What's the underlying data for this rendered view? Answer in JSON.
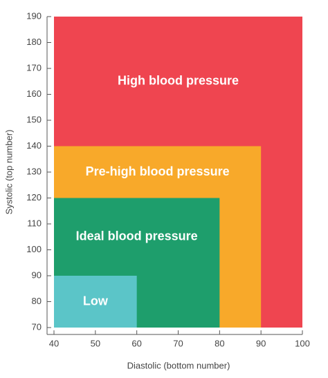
{
  "chart_data": {
    "type": "region",
    "x_label": "Diastolic (bottom number)",
    "y_label": "Systolic (top number)",
    "xlim": [
      40,
      100
    ],
    "ylim": [
      70,
      190
    ],
    "xticks": [
      40,
      50,
      60,
      70,
      80,
      90,
      100
    ],
    "yticks": [
      70,
      80,
      90,
      100,
      110,
      120,
      130,
      140,
      150,
      160,
      170,
      180,
      190
    ],
    "regions": [
      {
        "name": "High blood pressure",
        "color": "#ef4550",
        "x": [
          40,
          100
        ],
        "y": [
          70,
          190
        ]
      },
      {
        "name": "Pre-high blood pressure",
        "color": "#f8a92a",
        "x": [
          40,
          90
        ],
        "y": [
          70,
          140
        ]
      },
      {
        "name": "Ideal blood pressure",
        "color": "#1e9e6c",
        "x": [
          40,
          80
        ],
        "y": [
          70,
          120
        ]
      },
      {
        "name": "Low",
        "color": "#5bc5c8",
        "x": [
          40,
          60
        ],
        "y": [
          70,
          90
        ]
      }
    ]
  }
}
